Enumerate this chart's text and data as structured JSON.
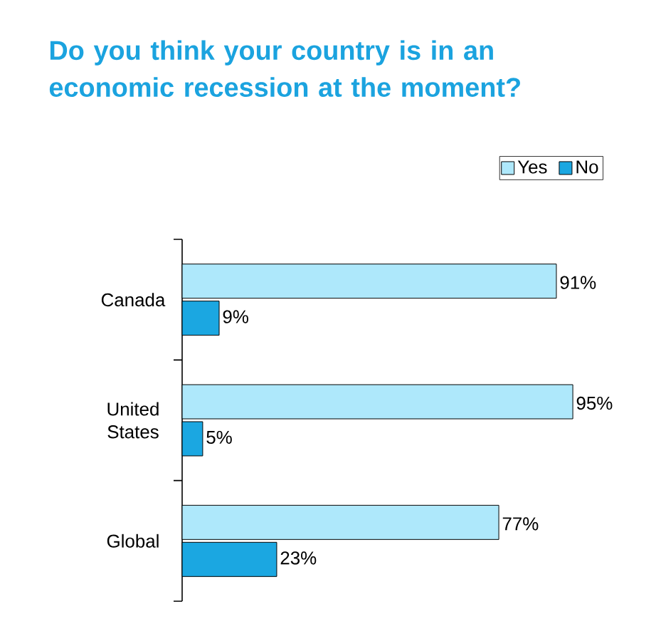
{
  "chart_data": {
    "type": "bar",
    "orientation": "horizontal",
    "title": "Do you think your country is in an economic recession at the moment?",
    "categories": [
      "Canada",
      "United States",
      "Global"
    ],
    "series": [
      {
        "name": "Yes",
        "color": "#aee8fb",
        "values": [
          91,
          95,
          77
        ],
        "value_labels": [
          "91%",
          "95%",
          "77%"
        ]
      },
      {
        "name": "No",
        "color": "#1ba7e1",
        "values": [
          9,
          5,
          23
        ],
        "value_labels": [
          "9%",
          "5%",
          "23%"
        ]
      }
    ],
    "legend": "top right"
  }
}
